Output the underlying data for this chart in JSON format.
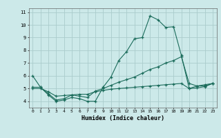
{
  "bg_color": "#cce9e9",
  "grid_color": "#aacccc",
  "line_color": "#1a6b5a",
  "xlabel": "Humidex (Indice chaleur)",
  "xlim": [
    -0.5,
    23.5
  ],
  "ylim": [
    3.5,
    11.3
  ],
  "yticks": [
    4,
    5,
    6,
    7,
    8,
    9,
    10,
    11
  ],
  "xticks": [
    0,
    1,
    2,
    3,
    4,
    5,
    6,
    7,
    8,
    9,
    10,
    11,
    12,
    13,
    14,
    15,
    16,
    17,
    18,
    19,
    20,
    21,
    22,
    23
  ],
  "line1_x": [
    0,
    1,
    2,
    3,
    4,
    5,
    6,
    7,
    8,
    9,
    10,
    11,
    12,
    13,
    14,
    15,
    16,
    17,
    18,
    19,
    20,
    21,
    22,
    23
  ],
  "line1_y": [
    6.0,
    5.1,
    4.5,
    4.0,
    4.1,
    4.3,
    4.2,
    4.0,
    4.0,
    5.1,
    5.9,
    7.2,
    7.9,
    8.9,
    9.0,
    10.7,
    10.4,
    9.8,
    9.85,
    7.6,
    5.0,
    5.2,
    5.2,
    5.4
  ],
  "line2_x": [
    0,
    1,
    2,
    3,
    4,
    5,
    6,
    7,
    8,
    9,
    10,
    11,
    12,
    13,
    14,
    15,
    16,
    17,
    18,
    19,
    20,
    21,
    22,
    23
  ],
  "line2_y": [
    5.1,
    5.1,
    4.6,
    4.1,
    4.2,
    4.5,
    4.4,
    4.3,
    4.8,
    5.0,
    5.25,
    5.5,
    5.7,
    5.9,
    6.2,
    6.5,
    6.7,
    7.0,
    7.2,
    7.5,
    5.4,
    5.2,
    5.3,
    5.4
  ],
  "line3_x": [
    0,
    1,
    2,
    3,
    4,
    5,
    6,
    7,
    8,
    9,
    10,
    11,
    12,
    13,
    14,
    15,
    16,
    17,
    18,
    19,
    20,
    21,
    22,
    23
  ],
  "line3_y": [
    5.0,
    5.0,
    4.75,
    4.4,
    4.45,
    4.5,
    4.55,
    4.55,
    4.75,
    4.85,
    4.95,
    5.0,
    5.05,
    5.1,
    5.15,
    5.2,
    5.25,
    5.3,
    5.35,
    5.4,
    5.0,
    5.05,
    5.15,
    5.4
  ]
}
